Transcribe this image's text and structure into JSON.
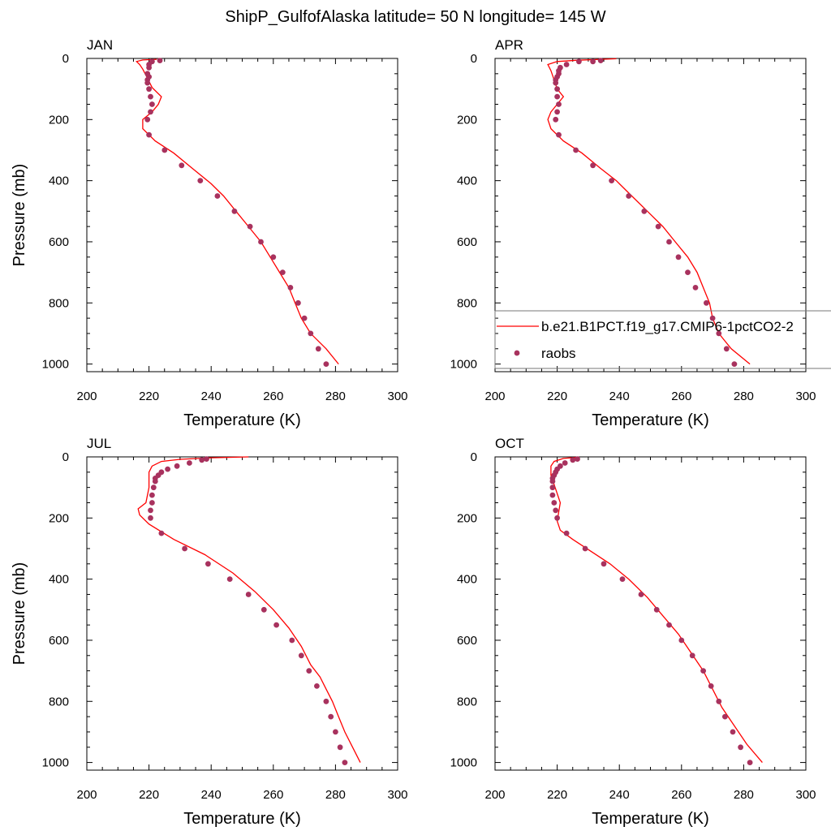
{
  "figure": {
    "title": "ShipP_GulfofAlaska  latitude= 50 N longitude= 145 W"
  },
  "legend": {
    "entries": [
      {
        "label": "b.e21.B1PCT.f19_g17.CMIP6-1pctCO2-2",
        "type": "line",
        "color": "#ff0000"
      },
      {
        "label": "raobs",
        "type": "marker",
        "color": "#a8325e"
      }
    ],
    "placement": "inside APR panel, lower right"
  },
  "chart_data": [
    {
      "type": "line",
      "panel_label": "JAN",
      "xlabel": "Temperature (K)",
      "ylabel": "Pressure (mb)",
      "xlim": [
        200,
        300
      ],
      "ylim": [
        1025,
        0
      ],
      "xticks": [
        200,
        220,
        240,
        260,
        280,
        300
      ],
      "yticks": [
        0,
        200,
        400,
        600,
        800,
        1000
      ],
      "y_reversed": true,
      "grid": false,
      "series": [
        {
          "name": "b.e21.B1PCT.f19_g17.CMIP6-1pctCO2-2",
          "style": "line",
          "color": "#ff0000",
          "points": [
            [
              222.5,
              3
            ],
            [
              218,
              5
            ],
            [
              216,
              10
            ],
            [
              217,
              20
            ],
            [
              218,
              35
            ],
            [
              219,
              55
            ],
            [
              220,
              75
            ],
            [
              221,
              95
            ],
            [
              224,
              125
            ],
            [
              223,
              150
            ],
            [
              221,
              175
            ],
            [
              218,
              200
            ],
            [
              218,
              230
            ],
            [
              222,
              270
            ],
            [
              228,
              310
            ],
            [
              234,
              360
            ],
            [
              240,
              410
            ],
            [
              244,
              450
            ],
            [
              248,
              500
            ],
            [
              252,
              550
            ],
            [
              256,
              600
            ],
            [
              259,
              650
            ],
            [
              262,
              700
            ],
            [
              265,
              750
            ],
            [
              267,
              800
            ],
            [
              269,
              850
            ],
            [
              272,
              900
            ],
            [
              277,
              950
            ],
            [
              281,
              1000
            ]
          ]
        },
        {
          "name": "raobs",
          "style": "markers",
          "color": "#a8325e",
          "points": [
            [
              223.5,
              7
            ],
            [
              221,
              10
            ],
            [
              220,
              20
            ],
            [
              220,
              30
            ],
            [
              219.5,
              50
            ],
            [
              220,
              60
            ],
            [
              219.5,
              70
            ],
            [
              219.5,
              80
            ],
            [
              220,
              100
            ],
            [
              220.5,
              125
            ],
            [
              221,
              150
            ],
            [
              220.5,
              175
            ],
            [
              219.5,
              200
            ],
            [
              220,
              250
            ],
            [
              225,
              300
            ],
            [
              230.5,
              350
            ],
            [
              236.5,
              400
            ],
            [
              242,
              450
            ],
            [
              247.5,
              500
            ],
            [
              252.5,
              550
            ],
            [
              256,
              600
            ],
            [
              260,
              650
            ],
            [
              263,
              700
            ],
            [
              265.5,
              750
            ],
            [
              268,
              800
            ],
            [
              270,
              850
            ],
            [
              272,
              900
            ],
            [
              274.5,
              950
            ],
            [
              277,
              1000
            ]
          ]
        }
      ]
    },
    {
      "type": "line",
      "panel_label": "APR",
      "xlabel": "Temperature (K)",
      "ylabel": "",
      "xlim": [
        200,
        300
      ],
      "ylim": [
        1025,
        0
      ],
      "xticks": [
        200,
        220,
        240,
        260,
        280,
        300
      ],
      "yticks": [
        0,
        200,
        400,
        600,
        800,
        1000
      ],
      "y_reversed": true,
      "grid": false,
      "series": [
        {
          "name": "b.e21.B1PCT.f19_g17.CMIP6-1pctCO2-2",
          "style": "line",
          "color": "#ff0000",
          "points": [
            [
              239,
              1
            ],
            [
              234,
              3
            ],
            [
              226,
              6
            ],
            [
              220,
              10
            ],
            [
              217,
              20
            ],
            [
              218,
              40
            ],
            [
              219,
              70
            ],
            [
              220,
              100
            ],
            [
              222,
              125
            ],
            [
              220,
              150
            ],
            [
              218,
              175
            ],
            [
              217,
              200
            ],
            [
              218,
              230
            ],
            [
              222,
              270
            ],
            [
              228,
              310
            ],
            [
              234,
              360
            ],
            [
              239,
              400
            ],
            [
              244,
              450
            ],
            [
              249,
              500
            ],
            [
              254,
              550
            ],
            [
              258,
              600
            ],
            [
              262,
              650
            ],
            [
              265,
              700
            ],
            [
              267,
              750
            ],
            [
              269,
              800
            ],
            [
              270,
              850
            ],
            [
              272,
              900
            ],
            [
              276,
              950
            ],
            [
              282,
              1000
            ]
          ]
        },
        {
          "name": "raobs",
          "style": "markers",
          "color": "#a8325e",
          "points": [
            [
              234,
              7
            ],
            [
              231.5,
              10
            ],
            [
              227,
              10
            ],
            [
              223,
              20
            ],
            [
              221,
              30
            ],
            [
              220.5,
              40
            ],
            [
              220.5,
              50
            ],
            [
              220,
              60
            ],
            [
              219.5,
              70
            ],
            [
              219.5,
              80
            ],
            [
              220,
              100
            ],
            [
              220,
              125
            ],
            [
              220.5,
              150
            ],
            [
              220,
              175
            ],
            [
              219.5,
              200
            ],
            [
              220.5,
              250
            ],
            [
              226,
              300
            ],
            [
              231.5,
              350
            ],
            [
              237.5,
              400
            ],
            [
              243,
              450
            ],
            [
              248,
              500
            ],
            [
              252.5,
              550
            ],
            [
              256,
              600
            ],
            [
              259,
              650
            ],
            [
              262,
              700
            ],
            [
              264.5,
              750
            ],
            [
              268,
              800
            ],
            [
              270,
              850
            ],
            [
              272,
              900
            ],
            [
              274.5,
              950
            ],
            [
              277,
              1000
            ]
          ]
        }
      ]
    },
    {
      "type": "line",
      "panel_label": "JUL",
      "xlabel": "Temperature (K)",
      "ylabel": "Pressure (mb)",
      "xlim": [
        200,
        300
      ],
      "ylim": [
        1025,
        0
      ],
      "xticks": [
        200,
        220,
        240,
        260,
        280,
        300
      ],
      "yticks": [
        0,
        200,
        400,
        600,
        800,
        1000
      ],
      "y_reversed": true,
      "grid": false,
      "series": [
        {
          "name": "b.e21.B1PCT.f19_g17.CMIP6-1pctCO2-2",
          "style": "line",
          "color": "#ff0000",
          "points": [
            [
              252,
              0
            ],
            [
              240,
              3
            ],
            [
              230,
              8
            ],
            [
              224,
              15
            ],
            [
              221,
              30
            ],
            [
              220,
              50
            ],
            [
              220,
              100
            ],
            [
              219,
              150
            ],
            [
              216.5,
              170
            ],
            [
              217,
              190
            ],
            [
              220,
              220
            ],
            [
              228,
              270
            ],
            [
              238,
              320
            ],
            [
              247,
              380
            ],
            [
              254,
              440
            ],
            [
              260,
              500
            ],
            [
              265,
              560
            ],
            [
              269,
              620
            ],
            [
              272,
              680
            ],
            [
              275,
              720
            ],
            [
              277,
              760
            ],
            [
              279,
              800
            ],
            [
              281,
              850
            ],
            [
              283,
              900
            ],
            [
              285.5,
              950
            ],
            [
              288,
              1000
            ]
          ]
        },
        {
          "name": "raobs",
          "style": "markers",
          "color": "#a8325e",
          "points": [
            [
              238.5,
              7
            ],
            [
              237,
              10
            ],
            [
              233,
              20
            ],
            [
              229,
              30
            ],
            [
              226,
              40
            ],
            [
              224,
              50
            ],
            [
              223,
              60
            ],
            [
              222,
              70
            ],
            [
              222,
              80
            ],
            [
              221.5,
              100
            ],
            [
              221,
              125
            ],
            [
              221,
              150
            ],
            [
              220.5,
              175
            ],
            [
              220.5,
              200
            ],
            [
              224,
              250
            ],
            [
              231.5,
              300
            ],
            [
              239,
              350
            ],
            [
              246,
              400
            ],
            [
              252,
              450
            ],
            [
              257,
              500
            ],
            [
              261,
              550
            ],
            [
              266,
              600
            ],
            [
              269,
              650
            ],
            [
              271.5,
              700
            ],
            [
              274,
              750
            ],
            [
              277,
              800
            ],
            [
              278.5,
              850
            ],
            [
              280,
              900
            ],
            [
              281.5,
              950
            ],
            [
              283,
              1000
            ]
          ]
        }
      ]
    },
    {
      "type": "line",
      "panel_label": "OCT",
      "xlabel": "Temperature (K)",
      "ylabel": "",
      "xlim": [
        200,
        300
      ],
      "ylim": [
        1025,
        0
      ],
      "xticks": [
        200,
        220,
        240,
        260,
        280,
        300
      ],
      "yticks": [
        0,
        200,
        400,
        600,
        800,
        1000
      ],
      "y_reversed": true,
      "grid": false,
      "series": [
        {
          "name": "b.e21.B1PCT.f19_g17.CMIP6-1pctCO2-2",
          "style": "line",
          "color": "#ff0000",
          "points": [
            [
              227,
              1
            ],
            [
              222,
              5
            ],
            [
              219,
              15
            ],
            [
              218,
              30
            ],
            [
              218,
              60
            ],
            [
              219,
              90
            ],
            [
              220,
              120
            ],
            [
              221,
              150
            ],
            [
              220.5,
              180
            ],
            [
              220,
              210
            ],
            [
              221,
              240
            ],
            [
              225,
              270
            ],
            [
              231,
              310
            ],
            [
              237,
              350
            ],
            [
              243,
              400
            ],
            [
              249,
              460
            ],
            [
              254,
              520
            ],
            [
              259,
              580
            ],
            [
              263,
              640
            ],
            [
              267,
              700
            ],
            [
              270,
              760
            ],
            [
              273,
              820
            ],
            [
              277,
              880
            ],
            [
              281,
              940
            ],
            [
              286,
              1000
            ]
          ]
        },
        {
          "name": "raobs",
          "style": "markers",
          "color": "#a8325e",
          "points": [
            [
              226.5,
              7
            ],
            [
              225,
              10
            ],
            [
              222.5,
              20
            ],
            [
              221,
              30
            ],
            [
              220,
              40
            ],
            [
              219.5,
              50
            ],
            [
              219,
              60
            ],
            [
              218.5,
              70
            ],
            [
              218.5,
              80
            ],
            [
              218.5,
              100
            ],
            [
              218.5,
              125
            ],
            [
              219,
              150
            ],
            [
              219.5,
              175
            ],
            [
              220,
              200
            ],
            [
              223,
              250
            ],
            [
              229,
              300
            ],
            [
              235,
              350
            ],
            [
              241,
              400
            ],
            [
              247,
              450
            ],
            [
              252,
              500
            ],
            [
              256,
              550
            ],
            [
              260,
              600
            ],
            [
              263.5,
              650
            ],
            [
              267,
              700
            ],
            [
              269.5,
              750
            ],
            [
              272,
              800
            ],
            [
              274,
              850
            ],
            [
              276.5,
              900
            ],
            [
              279,
              950
            ],
            [
              282,
              1000
            ]
          ]
        }
      ]
    }
  ]
}
